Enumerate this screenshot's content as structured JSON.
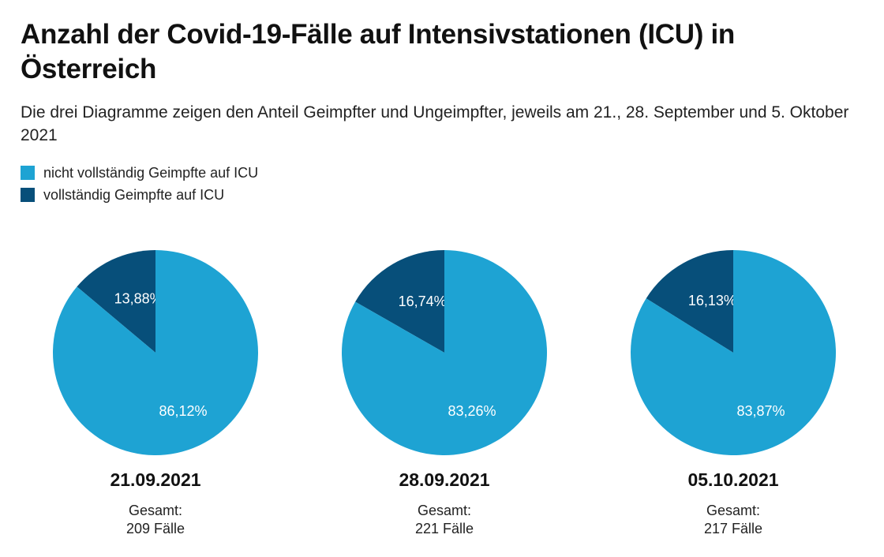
{
  "title": "Anzahl der Covid-19-Fälle auf Intensivstationen (ICU) in Österreich",
  "subtitle": "Die drei Diagramme zeigen den Anteil Geimpfter und Ungeimpfter, jeweils am 21., 28. September und 5. Oktober 2021",
  "legend": [
    {
      "label": "nicht vollständig Geimpfte auf ICU",
      "color": "#1ea3d3"
    },
    {
      "label": "vollständig Geimpfte auf ICU",
      "color": "#074f7a"
    }
  ],
  "chart_data": [
    {
      "type": "pie",
      "title": "21.09.2021",
      "total_label": "Gesamt:",
      "total_value": "209 Fälle",
      "slices": [
        {
          "name": "vollständig Geimpfte auf ICU",
          "value": 13.88,
          "label": "13,88%",
          "color": "#074f7a"
        },
        {
          "name": "nicht vollständig Geimpfte auf ICU",
          "value": 86.12,
          "label": "86,12%",
          "color": "#1ea3d3"
        }
      ]
    },
    {
      "type": "pie",
      "title": "28.09.2021",
      "total_label": "Gesamt:",
      "total_value": "221 Fälle",
      "slices": [
        {
          "name": "vollständig Geimpfte auf ICU",
          "value": 16.74,
          "label": "16,74%",
          "color": "#074f7a"
        },
        {
          "name": "nicht vollständig Geimpfte auf ICU",
          "value": 83.26,
          "label": "83,26%",
          "color": "#1ea3d3"
        }
      ]
    },
    {
      "type": "pie",
      "title": "05.10.2021",
      "total_label": "Gesamt:",
      "total_value": "217 Fälle",
      "slices": [
        {
          "name": "vollständig Geimpfte auf ICU",
          "value": 16.13,
          "label": "16,13%",
          "color": "#074f7a"
        },
        {
          "name": "nicht vollständig Geimpfte auf ICU",
          "value": 83.87,
          "label": "83,87%",
          "color": "#1ea3d3"
        }
      ]
    }
  ]
}
